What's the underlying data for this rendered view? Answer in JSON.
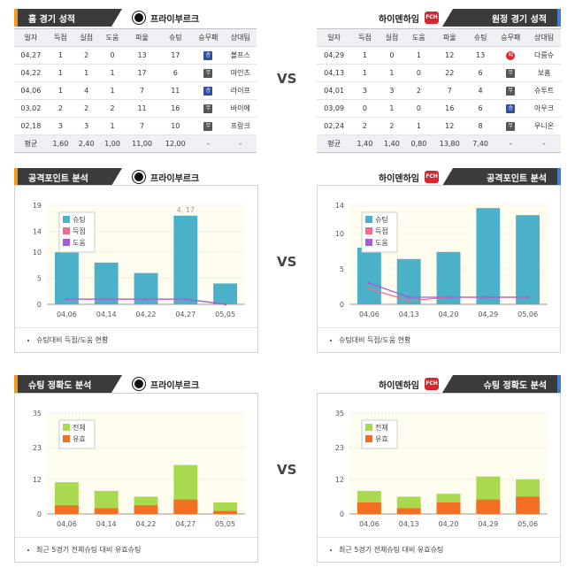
{
  "home_header": {
    "title": "홈 경기 성적",
    "team": "프라이부르크"
  },
  "away_header": {
    "title": "원정 경기 성적",
    "team": "하이덴하임",
    "crest_text": "FCH"
  },
  "columns": [
    "일자",
    "득점",
    "실점",
    "도움",
    "파울",
    "슈팅",
    "승무패",
    "상대팀"
  ],
  "home_rows": [
    {
      "date": "04,27",
      "goals": "1",
      "conceded": "2",
      "assists": "0",
      "fouls": "13",
      "shots": "17",
      "result": "승",
      "result_type": "win",
      "opponent": "볼프스"
    },
    {
      "date": "04,22",
      "goals": "1",
      "conceded": "1",
      "assists": "1",
      "fouls": "17",
      "shots": "6",
      "result": "무",
      "result_type": "draw",
      "opponent": "마인츠"
    },
    {
      "date": "04,06",
      "goals": "1",
      "conceded": "4",
      "assists": "1",
      "fouls": "7",
      "shots": "11",
      "result": "승",
      "result_type": "win",
      "opponent": "라이프"
    },
    {
      "date": "03,02",
      "goals": "2",
      "conceded": "2",
      "assists": "2",
      "fouls": "11",
      "shots": "16",
      "result": "무",
      "result_type": "draw",
      "opponent": "바이에"
    },
    {
      "date": "02,18",
      "goals": "3",
      "conceded": "3",
      "assists": "1",
      "fouls": "7",
      "shots": "10",
      "result": "무",
      "result_type": "draw",
      "opponent": "프랑크"
    }
  ],
  "home_avg": {
    "label": "평균",
    "goals": "1,60",
    "conceded": "2,40",
    "assists": "1,00",
    "fouls": "11,00",
    "shots": "12,00",
    "result": "-",
    "opponent": "-"
  },
  "away_rows": [
    {
      "date": "04,29",
      "goals": "1",
      "conceded": "0",
      "assists": "1",
      "fouls": "12",
      "shots": "13",
      "result": "패",
      "result_type": "loss",
      "opponent": "다름슈"
    },
    {
      "date": "04,13",
      "goals": "1",
      "conceded": "1",
      "assists": "0",
      "fouls": "22",
      "shots": "6",
      "result": "무",
      "result_type": "draw",
      "opponent": "보훔"
    },
    {
      "date": "04,01",
      "goals": "3",
      "conceded": "3",
      "assists": "2",
      "fouls": "7",
      "shots": "4",
      "result": "무",
      "result_type": "draw",
      "opponent": "슈투트"
    },
    {
      "date": "03,09",
      "goals": "0",
      "conceded": "1",
      "assists": "0",
      "fouls": "16",
      "shots": "6",
      "result": "승",
      "result_type": "win",
      "opponent": "아우크"
    },
    {
      "date": "02,24",
      "goals": "2",
      "conceded": "2",
      "assists": "1",
      "fouls": "12",
      "shots": "8",
      "result": "무",
      "result_type": "draw",
      "opponent": "우니온"
    }
  ],
  "away_avg": {
    "label": "평균",
    "goals": "1,40",
    "conceded": "1,40",
    "assists": "0,80",
    "fouls": "13,80",
    "shots": "7,40",
    "result": "-",
    "opponent": "-"
  },
  "vs_label": "VS",
  "attack_header": {
    "title": "공격포인트 분석",
    "home_team": "프라이부르크",
    "away_team": "하이덴하임"
  },
  "accuracy_header": {
    "title": "슈팅 정확도 분석",
    "home_team": "프라이부르크",
    "away_team": "하이덴하임"
  },
  "attack_footer": "슈팅대비 득점/도움 현황",
  "accuracy_footer": "최근 5경기 전체슈팅 대비 유효슈팅",
  "colors": {
    "shots": "#4ab1c8",
    "goals": "#ef6d8a",
    "assists": "#a75bd6",
    "total": "#a8d94f",
    "on_target": "#f36f23",
    "header_bg": "#3b3b3b",
    "home_accent": "#f09a1e",
    "away_accent": "#3f7fd0"
  },
  "chart_data": [
    {
      "id": "home_attack",
      "type": "bar",
      "categories": [
        "04,06",
        "04,14",
        "04,22",
        "04,27",
        "05,05"
      ],
      "ylim": [
        0,
        19
      ],
      "yticks": [
        0,
        5,
        10,
        14,
        19
      ],
      "legend": [
        "슈팅",
        "득점",
        "도움"
      ],
      "series": [
        {
          "name": "슈팅",
          "kind": "bar",
          "values": [
            10,
            8,
            6,
            17,
            4
          ]
        },
        {
          "name": "득점",
          "kind": "line",
          "values": [
            1,
            1,
            1,
            1,
            0
          ]
        },
        {
          "name": "도움",
          "kind": "line",
          "values": [
            1,
            1,
            1,
            1,
            0
          ]
        }
      ],
      "annotation": "4, 17"
    },
    {
      "id": "away_attack",
      "type": "bar",
      "categories": [
        "04,06",
        "04,13",
        "04,20",
        "04,29",
        "05,06"
      ],
      "ylim": [
        0,
        14
      ],
      "yticks": [
        0,
        5,
        10,
        14
      ],
      "legend": [
        "슈팅",
        "득점",
        "도움"
      ],
      "series": [
        {
          "name": "슈팅",
          "kind": "bar",
          "values": [
            8,
            6.4,
            7.4,
            13.6,
            12.6
          ]
        },
        {
          "name": "득점",
          "kind": "line",
          "values": [
            2.2,
            0.5,
            1,
            1,
            1
          ]
        },
        {
          "name": "도움",
          "kind": "line",
          "values": [
            3,
            1,
            1,
            1,
            1
          ]
        }
      ]
    },
    {
      "id": "home_accuracy",
      "type": "bar",
      "categories": [
        "04,06",
        "04,14",
        "04,22",
        "04,27",
        "05,05"
      ],
      "ylim": [
        0,
        35
      ],
      "yticks": [
        0,
        12,
        23,
        35
      ],
      "legend": [
        "전체",
        "유효"
      ],
      "series": [
        {
          "name": "전체",
          "kind": "stack_total",
          "values": [
            11,
            8,
            6,
            17,
            4
          ]
        },
        {
          "name": "유효",
          "kind": "stack_base",
          "values": [
            3,
            2,
            3,
            5,
            1
          ]
        }
      ]
    },
    {
      "id": "away_accuracy",
      "type": "bar",
      "categories": [
        "04,06",
        "04,13",
        "04,20",
        "04,29",
        "05,06"
      ],
      "ylim": [
        0,
        35
      ],
      "yticks": [
        0,
        12,
        23,
        35
      ],
      "legend": [
        "전체",
        "유효"
      ],
      "series": [
        {
          "name": "전체",
          "kind": "stack_total",
          "values": [
            8,
            6,
            7,
            13,
            12
          ]
        },
        {
          "name": "유효",
          "kind": "stack_base",
          "values": [
            4,
            2,
            4,
            5,
            6
          ]
        }
      ]
    }
  ]
}
